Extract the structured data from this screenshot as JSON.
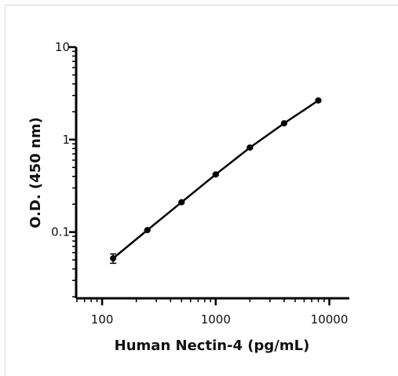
{
  "chart_data": {
    "type": "line",
    "title": "",
    "xlabel": "Human Nectin-4 (pg/mL)",
    "ylabel": "O.D. (450 nm)",
    "xscale": "log",
    "yscale": "log",
    "xlim": [
      60,
      15000
    ],
    "ylim": [
      0.02,
      10
    ],
    "grid": false,
    "legend": "none",
    "x_tick_labels": [
      "100",
      "1000",
      "10000"
    ],
    "y_tick_labels": [
      "10",
      "1",
      "0.1"
    ],
    "x_ticks": [
      100,
      1000,
      10000
    ],
    "y_ticks": [
      10,
      1,
      0.1
    ],
    "series": [
      {
        "color": "#000000",
        "x": [
          125,
          250,
          500,
          1000,
          2000,
          4000,
          8000
        ],
        "y": [
          0.052,
          0.105,
          0.21,
          0.42,
          0.82,
          1.5,
          2.65
        ],
        "y_err": [
          0.006,
          0.002,
          0.004,
          0.008,
          0.015,
          0.02,
          0.04
        ]
      }
    ]
  }
}
